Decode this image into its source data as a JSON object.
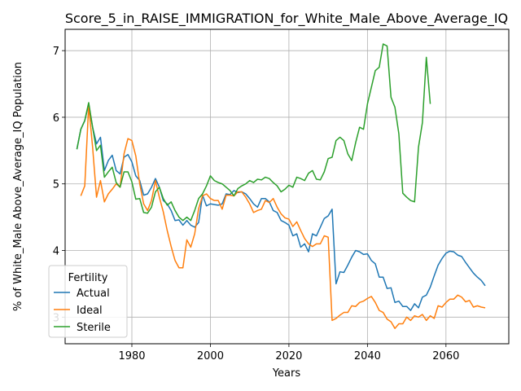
{
  "chart_data": {
    "type": "line",
    "title": "Score_5_in_RAISE_IMMIGRATION_for_White_Male_Above_Average_IQ",
    "xlabel": "Years",
    "ylabel": "% of White_Male Above_Average_IQ Population",
    "xlim": [
      1963,
      2076
    ],
    "ylim": [
      2.6,
      7.32
    ],
    "x_ticks": [
      1980,
      2000,
      2020,
      2040,
      2060
    ],
    "y_ticks": [
      3,
      4,
      5,
      6,
      7
    ],
    "grid": true,
    "legend": {
      "title": "Fertility",
      "position": "lower-left"
    },
    "series": [
      {
        "name": "Actual",
        "color": "#1f77b4",
        "points": [
          [
            1966,
            5.52
          ],
          [
            1967,
            5.82
          ],
          [
            1968,
            5.95
          ],
          [
            1969,
            6.2
          ],
          [
            1970,
            5.85
          ],
          [
            1971,
            5.6
          ],
          [
            1972,
            5.7
          ],
          [
            1973,
            5.2
          ],
          [
            1974,
            5.35
          ],
          [
            1975,
            5.43
          ],
          [
            1976,
            5.2
          ],
          [
            1977,
            5.15
          ],
          [
            1978,
            5.4
          ],
          [
            1979,
            5.44
          ],
          [
            1980,
            5.33
          ],
          [
            1981,
            5.12
          ],
          [
            1982,
            5.05
          ],
          [
            1983,
            4.83
          ],
          [
            1984,
            4.85
          ],
          [
            1985,
            4.95
          ],
          [
            1986,
            5.08
          ],
          [
            1987,
            4.95
          ],
          [
            1988,
            4.75
          ],
          [
            1989,
            4.7
          ],
          [
            1990,
            4.6
          ],
          [
            1991,
            4.45
          ],
          [
            1992,
            4.46
          ],
          [
            1993,
            4.38
          ],
          [
            1994,
            4.45
          ],
          [
            1995,
            4.38
          ],
          [
            1996,
            4.35
          ],
          [
            1997,
            4.42
          ],
          [
            1998,
            4.83
          ],
          [
            1999,
            4.67
          ],
          [
            2000,
            4.7
          ],
          [
            2001,
            4.69
          ],
          [
            2002,
            4.68
          ],
          [
            2003,
            4.7
          ],
          [
            2004,
            4.85
          ],
          [
            2005,
            4.84
          ],
          [
            2006,
            4.9
          ],
          [
            2007,
            4.87
          ],
          [
            2008,
            4.88
          ],
          [
            2009,
            4.85
          ],
          [
            2010,
            4.78
          ],
          [
            2011,
            4.7
          ],
          [
            2012,
            4.65
          ],
          [
            2013,
            4.78
          ],
          [
            2014,
            4.78
          ],
          [
            2015,
            4.73
          ],
          [
            2016,
            4.6
          ],
          [
            2017,
            4.57
          ],
          [
            2018,
            4.45
          ],
          [
            2019,
            4.42
          ],
          [
            2020,
            4.38
          ],
          [
            2021,
            4.22
          ],
          [
            2022,
            4.25
          ],
          [
            2023,
            4.05
          ],
          [
            2024,
            4.1
          ],
          [
            2025,
            3.98
          ],
          [
            2026,
            4.25
          ],
          [
            2027,
            4.22
          ],
          [
            2028,
            4.35
          ],
          [
            2029,
            4.48
          ],
          [
            2030,
            4.52
          ],
          [
            2031,
            4.62
          ],
          [
            2032,
            3.5
          ],
          [
            2033,
            3.68
          ],
          [
            2034,
            3.67
          ],
          [
            2035,
            3.78
          ],
          [
            2036,
            3.9
          ],
          [
            2037,
            4.0
          ],
          [
            2038,
            3.98
          ],
          [
            2039,
            3.94
          ],
          [
            2040,
            3.95
          ],
          [
            2041,
            3.85
          ],
          [
            2042,
            3.8
          ],
          [
            2043,
            3.6
          ],
          [
            2044,
            3.6
          ],
          [
            2045,
            3.43
          ],
          [
            2046,
            3.44
          ],
          [
            2047,
            3.22
          ],
          [
            2048,
            3.24
          ],
          [
            2049,
            3.16
          ],
          [
            2050,
            3.16
          ],
          [
            2051,
            3.1
          ],
          [
            2052,
            3.2
          ],
          [
            2053,
            3.14
          ],
          [
            2054,
            3.3
          ],
          [
            2055,
            3.33
          ],
          [
            2056,
            3.45
          ],
          [
            2057,
            3.62
          ],
          [
            2058,
            3.78
          ],
          [
            2059,
            3.88
          ],
          [
            2060,
            3.96
          ],
          [
            2061,
            3.99
          ],
          [
            2062,
            3.98
          ],
          [
            2063,
            3.93
          ],
          [
            2064,
            3.91
          ],
          [
            2065,
            3.82
          ],
          [
            2066,
            3.74
          ],
          [
            2067,
            3.66
          ],
          [
            2068,
            3.6
          ],
          [
            2069,
            3.55
          ],
          [
            2070,
            3.47
          ]
        ]
      },
      {
        "name": "Ideal",
        "color": "#ff7f0e",
        "points": [
          [
            1967,
            4.82
          ],
          [
            1968,
            4.97
          ],
          [
            1969,
            6.18
          ],
          [
            1970,
            5.55
          ],
          [
            1971,
            4.8
          ],
          [
            1972,
            5.05
          ],
          [
            1973,
            4.73
          ],
          [
            1974,
            4.85
          ],
          [
            1975,
            4.92
          ],
          [
            1976,
            5.0
          ],
          [
            1977,
            4.95
          ],
          [
            1978,
            5.45
          ],
          [
            1979,
            5.68
          ],
          [
            1980,
            5.65
          ],
          [
            1981,
            5.42
          ],
          [
            1982,
            5.0
          ],
          [
            1983,
            4.7
          ],
          [
            1984,
            4.6
          ],
          [
            1985,
            4.75
          ],
          [
            1986,
            5.05
          ],
          [
            1987,
            4.8
          ],
          [
            1988,
            4.58
          ],
          [
            1989,
            4.3
          ],
          [
            1990,
            4.06
          ],
          [
            1991,
            3.85
          ],
          [
            1992,
            3.74
          ],
          [
            1993,
            3.74
          ],
          [
            1994,
            4.16
          ],
          [
            1995,
            4.05
          ],
          [
            1996,
            4.25
          ],
          [
            1997,
            4.63
          ],
          [
            1998,
            4.82
          ],
          [
            1999,
            4.85
          ],
          [
            2000,
            4.78
          ],
          [
            2001,
            4.75
          ],
          [
            2002,
            4.75
          ],
          [
            2003,
            4.62
          ],
          [
            2004,
            4.83
          ],
          [
            2005,
            4.83
          ],
          [
            2006,
            4.82
          ],
          [
            2007,
            4.88
          ],
          [
            2008,
            4.88
          ],
          [
            2009,
            4.8
          ],
          [
            2010,
            4.7
          ],
          [
            2011,
            4.57
          ],
          [
            2012,
            4.6
          ],
          [
            2013,
            4.62
          ],
          [
            2014,
            4.75
          ],
          [
            2015,
            4.72
          ],
          [
            2016,
            4.78
          ],
          [
            2017,
            4.65
          ],
          [
            2018,
            4.55
          ],
          [
            2019,
            4.49
          ],
          [
            2020,
            4.47
          ],
          [
            2021,
            4.36
          ],
          [
            2022,
            4.43
          ],
          [
            2023,
            4.3
          ],
          [
            2024,
            4.18
          ],
          [
            2025,
            4.1
          ],
          [
            2026,
            4.06
          ],
          [
            2027,
            4.1
          ],
          [
            2028,
            4.1
          ],
          [
            2029,
            4.22
          ],
          [
            2030,
            4.2
          ],
          [
            2031,
            2.95
          ],
          [
            2032,
            2.98
          ],
          [
            2033,
            3.03
          ],
          [
            2034,
            3.07
          ],
          [
            2035,
            3.07
          ],
          [
            2036,
            3.17
          ],
          [
            2037,
            3.16
          ],
          [
            2038,
            3.22
          ],
          [
            2039,
            3.24
          ],
          [
            2040,
            3.28
          ],
          [
            2041,
            3.31
          ],
          [
            2042,
            3.22
          ],
          [
            2043,
            3.1
          ],
          [
            2044,
            3.07
          ],
          [
            2045,
            2.97
          ],
          [
            2046,
            2.93
          ],
          [
            2047,
            2.83
          ],
          [
            2048,
            2.9
          ],
          [
            2049,
            2.9
          ],
          [
            2050,
            3.0
          ],
          [
            2051,
            2.95
          ],
          [
            2052,
            3.02
          ],
          [
            2053,
            3.0
          ],
          [
            2054,
            3.04
          ],
          [
            2055,
            2.95
          ],
          [
            2056,
            3.02
          ],
          [
            2057,
            2.98
          ],
          [
            2058,
            3.17
          ],
          [
            2059,
            3.15
          ],
          [
            2060,
            3.22
          ],
          [
            2061,
            3.27
          ],
          [
            2062,
            3.27
          ],
          [
            2063,
            3.33
          ],
          [
            2064,
            3.3
          ],
          [
            2065,
            3.23
          ],
          [
            2066,
            3.25
          ],
          [
            2067,
            3.15
          ],
          [
            2068,
            3.17
          ],
          [
            2069,
            3.15
          ],
          [
            2070,
            3.14
          ]
        ]
      },
      {
        "name": "Sterile",
        "color": "#2ca02c",
        "points": [
          [
            1966,
            5.52
          ],
          [
            1967,
            5.82
          ],
          [
            1968,
            5.95
          ],
          [
            1969,
            6.22
          ],
          [
            1970,
            5.85
          ],
          [
            1971,
            5.5
          ],
          [
            1972,
            5.58
          ],
          [
            1973,
            5.1
          ],
          [
            1974,
            5.18
          ],
          [
            1975,
            5.25
          ],
          [
            1976,
            5.02
          ],
          [
            1977,
            4.95
          ],
          [
            1978,
            5.18
          ],
          [
            1979,
            5.18
          ],
          [
            1980,
            5.03
          ],
          [
            1981,
            4.77
          ],
          [
            1982,
            4.78
          ],
          [
            1983,
            4.57
          ],
          [
            1984,
            4.56
          ],
          [
            1985,
            4.65
          ],
          [
            1986,
            4.88
          ],
          [
            1987,
            4.95
          ],
          [
            1988,
            4.78
          ],
          [
            1989,
            4.68
          ],
          [
            1990,
            4.73
          ],
          [
            1991,
            4.6
          ],
          [
            1992,
            4.5
          ],
          [
            1993,
            4.45
          ],
          [
            1994,
            4.5
          ],
          [
            1995,
            4.45
          ],
          [
            1996,
            4.6
          ],
          [
            1997,
            4.78
          ],
          [
            1998,
            4.85
          ],
          [
            1999,
            4.97
          ],
          [
            2000,
            5.12
          ],
          [
            2001,
            5.05
          ],
          [
            2002,
            5.02
          ],
          [
            2003,
            5.0
          ],
          [
            2004,
            4.95
          ],
          [
            2005,
            4.9
          ],
          [
            2006,
            4.82
          ],
          [
            2007,
            4.93
          ],
          [
            2008,
            4.97
          ],
          [
            2009,
            5.0
          ],
          [
            2010,
            5.05
          ],
          [
            2011,
            5.02
          ],
          [
            2012,
            5.07
          ],
          [
            2013,
            5.06
          ],
          [
            2014,
            5.1
          ],
          [
            2015,
            5.08
          ],
          [
            2016,
            5.02
          ],
          [
            2017,
            4.97
          ],
          [
            2018,
            4.88
          ],
          [
            2019,
            4.92
          ],
          [
            2020,
            4.98
          ],
          [
            2021,
            4.95
          ],
          [
            2022,
            5.1
          ],
          [
            2023,
            5.08
          ],
          [
            2024,
            5.05
          ],
          [
            2025,
            5.16
          ],
          [
            2026,
            5.2
          ],
          [
            2027,
            5.07
          ],
          [
            2028,
            5.06
          ],
          [
            2029,
            5.18
          ],
          [
            2030,
            5.38
          ],
          [
            2031,
            5.4
          ],
          [
            2032,
            5.65
          ],
          [
            2033,
            5.7
          ],
          [
            2034,
            5.65
          ],
          [
            2035,
            5.45
          ],
          [
            2036,
            5.35
          ],
          [
            2037,
            5.62
          ],
          [
            2038,
            5.85
          ],
          [
            2039,
            5.82
          ],
          [
            2040,
            6.2
          ],
          [
            2041,
            6.45
          ],
          [
            2042,
            6.7
          ],
          [
            2043,
            6.75
          ],
          [
            2044,
            7.1
          ],
          [
            2045,
            7.07
          ],
          [
            2046,
            6.3
          ],
          [
            2047,
            6.15
          ],
          [
            2048,
            5.75
          ],
          [
            2049,
            4.86
          ],
          [
            2050,
            4.8
          ],
          [
            2051,
            4.75
          ],
          [
            2052,
            4.73
          ],
          [
            2053,
            5.55
          ],
          [
            2054,
            5.92
          ],
          [
            2055,
            6.9
          ],
          [
            2056,
            6.2
          ]
        ]
      }
    ]
  }
}
